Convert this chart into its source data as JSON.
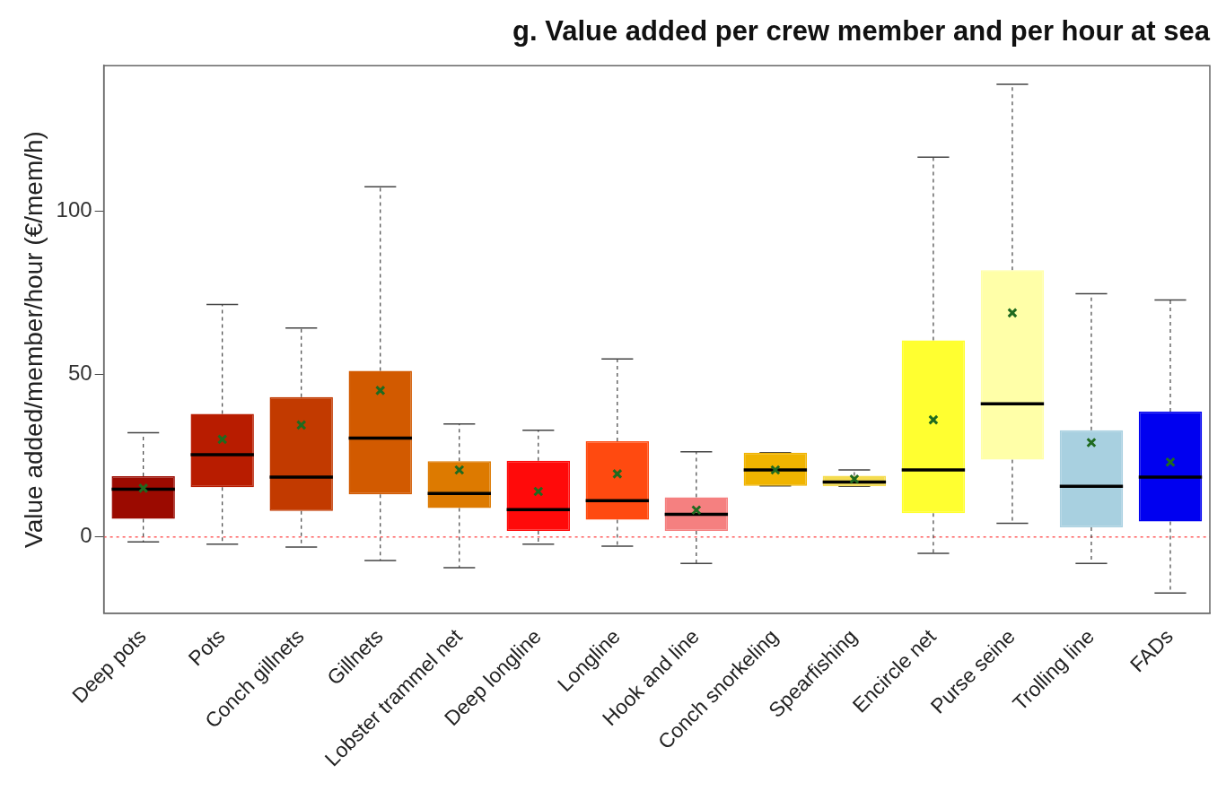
{
  "chart_data": {
    "type": "box",
    "title": "g. Value added per crew member and per hour at sea",
    "ylabel": "Value added/member/hour (€/mem/h)",
    "categories": [
      "Deep pots",
      "Pots",
      "Conch gillnets",
      "Gillnets",
      "Lobster trammel net",
      "Deep longline",
      "Longline",
      "Hook and line",
      "Conch snorkeling",
      "Spearfishing",
      "Encircle net",
      "Purse seine",
      "Trolling line",
      "FADs"
    ],
    "colors": [
      "#9b0a00",
      "#b81c00",
      "#c23a00",
      "#d25a00",
      "#dd7a00",
      "#ff0a0a",
      "#ff4a10",
      "#f58080",
      "#f0b400",
      "#f5dc50",
      "#ffff30",
      "#ffffa8",
      "#a8d0e0",
      "#0000f0"
    ],
    "boxes": [
      {
        "low": -1.5,
        "q1": 5.6,
        "median": 14.7,
        "q3": 18.7,
        "high": 32,
        "mean": 15
      },
      {
        "low": -2.2,
        "q1": 15.3,
        "median": 25.3,
        "q3": 37.8,
        "high": 71.4,
        "mean": 30
      },
      {
        "low": -3.1,
        "q1": 8,
        "median": 18.4,
        "q3": 43,
        "high": 64.2,
        "mean": 34.4
      },
      {
        "low": -7.2,
        "q1": 13.1,
        "median": 30.4,
        "q3": 51,
        "high": 107.5,
        "mean": 45
      },
      {
        "low": -9.4,
        "q1": 8.9,
        "median": 13.4,
        "q3": 23.3,
        "high": 34.7,
        "mean": 20.6
      },
      {
        "low": -2.2,
        "q1": 1.9,
        "median": 8.4,
        "q3": 23.4,
        "high": 32.8,
        "mean": 14
      },
      {
        "low": -2.8,
        "q1": 5.3,
        "median": 11.2,
        "q3": 29.4,
        "high": 54.7,
        "mean": 19.4
      },
      {
        "low": -8.1,
        "q1": 1.9,
        "median": 7,
        "q3": 12.2,
        "high": 26.2,
        "mean": 8.3
      },
      {
        "low": 15.7,
        "q1": 15.7,
        "median": 20.6,
        "q3": 25.9,
        "high": 25.9,
        "mean": 20.6
      },
      {
        "low": 15.6,
        "q1": 15.6,
        "median": 16.9,
        "q3": 18.8,
        "high": 20.6,
        "mean": 17.8
      },
      {
        "low": -5,
        "q1": 7.3,
        "median": 20.6,
        "q3": 60.4,
        "high": 116.6,
        "mean": 36
      },
      {
        "low": 4.2,
        "q1": 23.8,
        "median": 40.9,
        "q3": 81.9,
        "high": 139,
        "mean": 68.8
      },
      {
        "low": -8.1,
        "q1": 3,
        "median": 15.6,
        "q3": 32.8,
        "high": 74.7,
        "mean": 29
      },
      {
        "low": -17.2,
        "q1": 4.8,
        "median": 18.4,
        "q3": 38.5,
        "high": 72.8,
        "mean": 23
      }
    ],
    "ylim": [
      -23.4,
      144.7
    ],
    "yticks": [
      0,
      50,
      100
    ],
    "ref_lines": [
      {
        "axis": "y",
        "value": 0,
        "color": "#ff6060",
        "line_style": "dotted"
      }
    ],
    "marker": "cross",
    "grid": false,
    "legend": false
  }
}
